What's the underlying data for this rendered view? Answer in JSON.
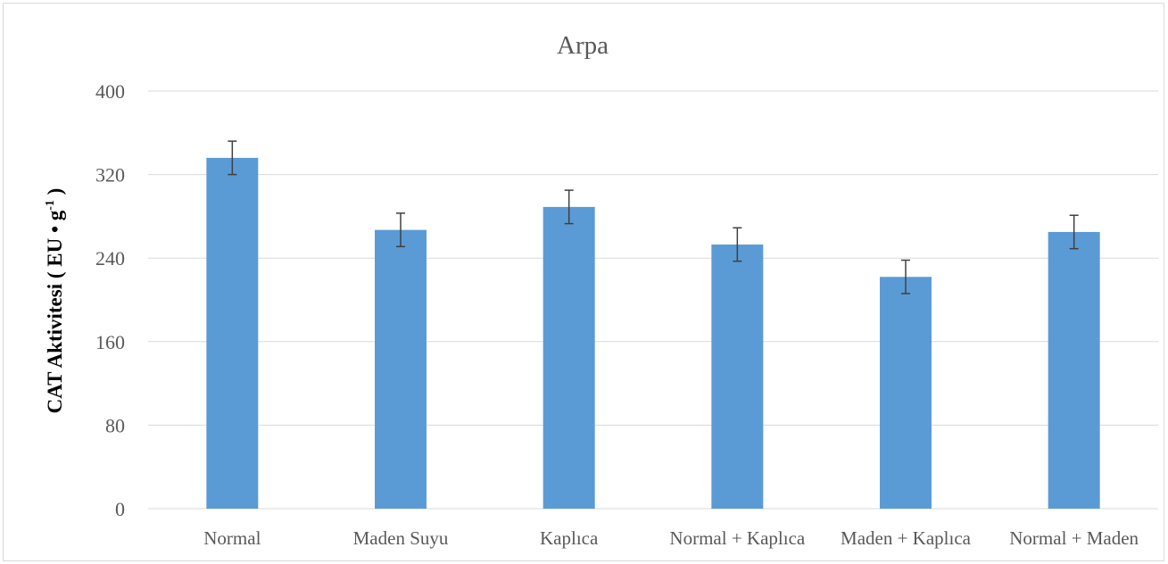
{
  "chart_data": {
    "type": "bar",
    "title": "Arpa",
    "xlabel": "",
    "ylabel": "CAT Aktivitesi ( EU • g-1 )",
    "ylabel_parts": {
      "main": "CAT Aktivitesi ( EU • g",
      "sup": "-1",
      "end": " )"
    },
    "ylim": [
      0,
      400
    ],
    "yticks": [
      "0",
      "80",
      "160",
      "240",
      "320",
      "400"
    ],
    "categories": [
      "Normal",
      "Maden Suyu",
      "Kaplıca",
      "Normal + Kaplıca",
      "Maden  + Kaplıca",
      "Normal + Maden"
    ],
    "values": [
      336,
      267,
      289,
      253,
      222,
      265
    ],
    "errors": [
      16,
      16,
      16,
      16,
      16,
      16
    ],
    "bar_color": "#5b9bd5",
    "error_color": "#404040",
    "grid": true,
    "grid_color": "#d9d9d9",
    "legend": "none"
  }
}
